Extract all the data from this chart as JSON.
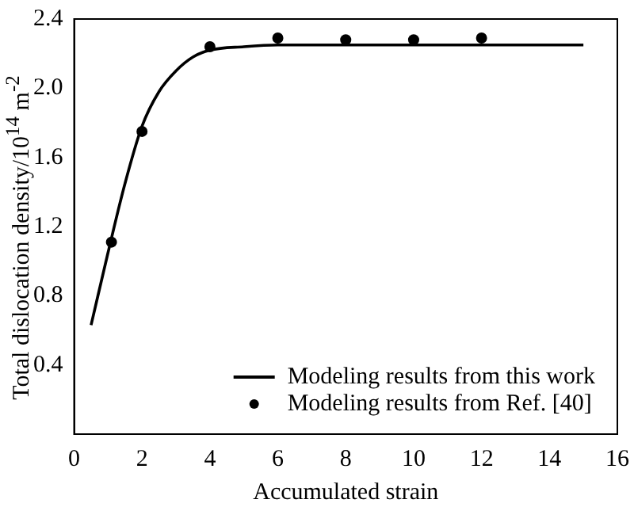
{
  "chart_data": {
    "type": "line",
    "xlabel": "Accumulated strain",
    "ylabel": "Total dislocation density/10$^{14}$ m$^{-2}$",
    "xlim": [
      0,
      16
    ],
    "xticks": [
      0,
      2,
      4,
      6,
      8,
      10,
      12,
      14,
      16
    ],
    "ylim": [
      0,
      2.4
    ],
    "yticks": [
      0.4,
      0.8,
      1.2,
      1.6,
      {
        "value": 2,
        "label": "2.0"
      },
      2.4
    ],
    "grid": false,
    "legend": "bottom right",
    "series": [
      {
        "name": "Modeling results from this work",
        "color": "#000000",
        "marker": "none",
        "line_style": "solid",
        "x": [
          0.5,
          1,
          1.5,
          2,
          2.5,
          3,
          3.5,
          4,
          5,
          6,
          8,
          10,
          12,
          15
        ],
        "values": [
          0.63,
          1.05,
          1.45,
          1.78,
          1.98,
          2.1,
          2.18,
          2.22,
          2.24,
          2.25,
          2.25,
          2.25,
          2.25,
          2.25
        ]
      },
      {
        "name": "Modeling results from Ref. [40]",
        "type": "scatter",
        "color": "#000000",
        "marker": "circle",
        "x": [
          1.1,
          2,
          4,
          6,
          8,
          10,
          12
        ],
        "values": [
          1.11,
          1.75,
          2.24,
          2.29,
          2.28,
          2.28,
          2.29
        ]
      }
    ]
  }
}
